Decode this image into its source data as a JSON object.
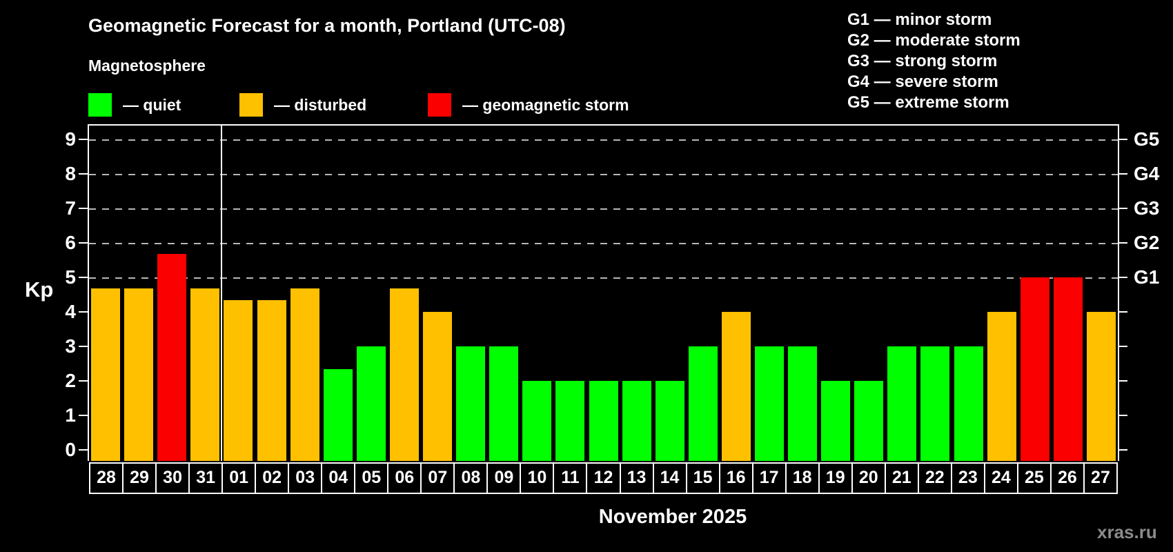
{
  "title": "Geomagnetic Forecast for a month, Portland (UTC-08)",
  "subtitle": "Magnetosphere",
  "status_legend": [
    {
      "key": "quiet",
      "label": "— quiet",
      "color": "#00ff00"
    },
    {
      "key": "disturbed",
      "label": "— disturbed",
      "color": "#ffc000"
    },
    {
      "key": "storm",
      "label": "— geomagnetic storm",
      "color": "#fa0000"
    }
  ],
  "g_scale_legend": [
    "G1 — minor storm",
    "G2 — moderate storm",
    "G3 — strong storm",
    "G4 — severe storm",
    "G5 — extreme storm"
  ],
  "y_axis": {
    "label": "Kp",
    "ticks": [
      0,
      1,
      2,
      3,
      4,
      5,
      6,
      7,
      8,
      9
    ]
  },
  "right_axis": {
    "labels": [
      {
        "text": "G1",
        "kp": 5
      },
      {
        "text": "G2",
        "kp": 6
      },
      {
        "text": "G3",
        "kp": 7
      },
      {
        "text": "G4",
        "kp": 8
      },
      {
        "text": "G5",
        "kp": 9
      }
    ]
  },
  "x_axis_label": "November 2025",
  "watermark": "xras.ru",
  "chart_data": {
    "type": "bar",
    "title": "Geomagnetic Forecast for a month, Portland (UTC-08)",
    "xlabel": "November 2025",
    "ylabel": "Kp",
    "ylim": [
      0,
      9.4
    ],
    "grid": "dashed horizontal at G-storm levels",
    "gridlines_at_kp": [
      5,
      6,
      7,
      8,
      9
    ],
    "month_separator_after_index": 3,
    "categories": [
      "28",
      "29",
      "30",
      "31",
      "01",
      "02",
      "03",
      "04",
      "05",
      "06",
      "07",
      "08",
      "09",
      "10",
      "11",
      "12",
      "13",
      "14",
      "15",
      "16",
      "17",
      "18",
      "19",
      "20",
      "21",
      "22",
      "23",
      "24",
      "25",
      "26",
      "27"
    ],
    "values": [
      4.67,
      4.67,
      5.67,
      4.67,
      4.33,
      4.33,
      4.67,
      2.33,
      3,
      4.67,
      4,
      3,
      3,
      2,
      2,
      2,
      2,
      2,
      3,
      4,
      3,
      3,
      2,
      2,
      3,
      3,
      3,
      4,
      5,
      5,
      4
    ],
    "statuses": [
      "disturbed",
      "disturbed",
      "storm",
      "disturbed",
      "disturbed",
      "disturbed",
      "disturbed",
      "quiet",
      "quiet",
      "disturbed",
      "disturbed",
      "quiet",
      "quiet",
      "quiet",
      "quiet",
      "quiet",
      "quiet",
      "quiet",
      "quiet",
      "disturbed",
      "quiet",
      "quiet",
      "quiet",
      "quiet",
      "quiet",
      "quiet",
      "quiet",
      "disturbed",
      "storm",
      "storm",
      "disturbed"
    ]
  }
}
